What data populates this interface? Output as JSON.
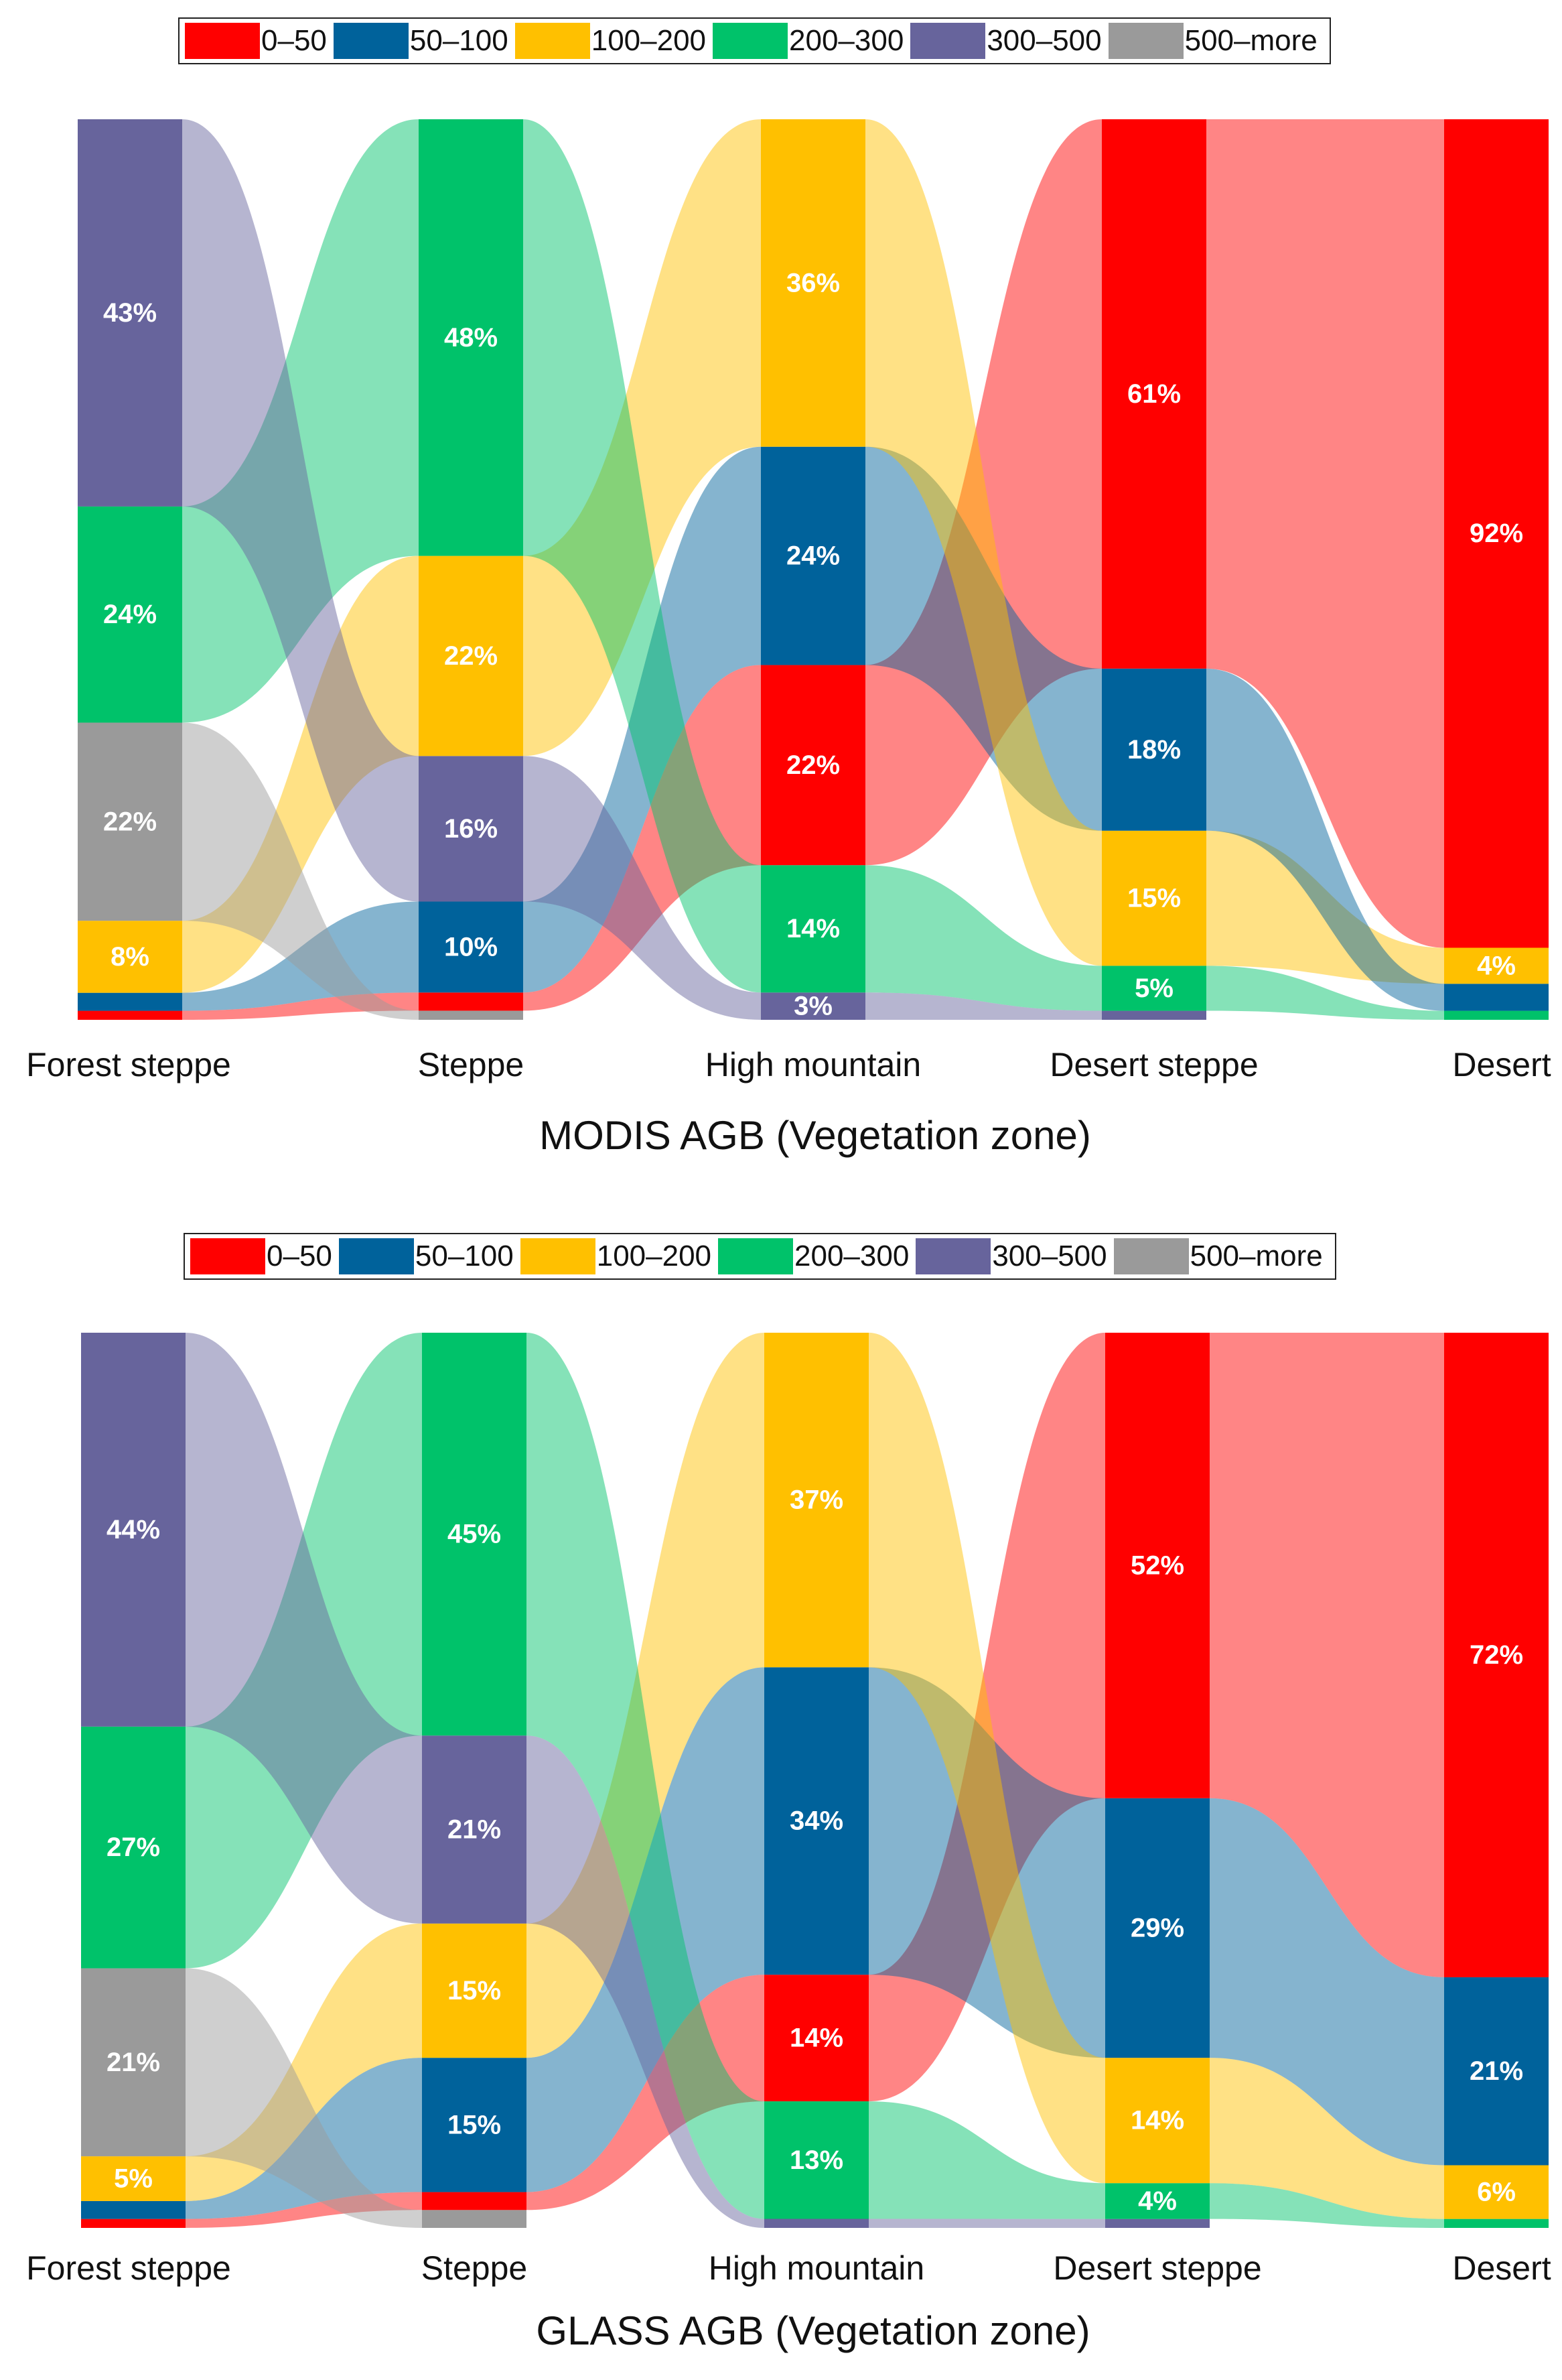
{
  "legend": [
    {
      "label": "0–50",
      "color": "#ff0000"
    },
    {
      "label": "50–100",
      "color": "#00629b"
    },
    {
      "label": "100–200",
      "color": "#ffc000"
    },
    {
      "label": "200–300",
      "color": "#00c26a"
    },
    {
      "label": "300–500",
      "color": "#67649c"
    },
    {
      "label": "500–more",
      "color": "#9a9a9a"
    }
  ],
  "chart_data": [
    {
      "type": "sankey",
      "title": "MODIS AGB (Vegetation zone)",
      "categories": [
        "Forest steppe",
        "Steppe",
        "High mountain",
        "Desert steppe",
        "Desert"
      ],
      "legend_placement": "top",
      "stacks": [
        [
          {
            "bin": "0–50",
            "value": 1
          },
          {
            "bin": "50–100",
            "value": 2
          },
          {
            "bin": "100–200",
            "value": 8
          },
          {
            "bin": "500–more",
            "value": 22
          },
          {
            "bin": "200–300",
            "value": 24
          },
          {
            "bin": "300–500",
            "value": 43
          }
        ],
        [
          {
            "bin": "500–more",
            "value": 1
          },
          {
            "bin": "0–50",
            "value": 2
          },
          {
            "bin": "50–100",
            "value": 10
          },
          {
            "bin": "300–500",
            "value": 16
          },
          {
            "bin": "100–200",
            "value": 22
          },
          {
            "bin": "200–300",
            "value": 48
          }
        ],
        [
          {
            "bin": "300–500",
            "value": 3
          },
          {
            "bin": "200–300",
            "value": 14
          },
          {
            "bin": "0–50",
            "value": 22
          },
          {
            "bin": "50–100",
            "value": 24
          },
          {
            "bin": "100–200",
            "value": 36
          }
        ],
        [
          {
            "bin": "300–500",
            "value": 1
          },
          {
            "bin": "200–300",
            "value": 5
          },
          {
            "bin": "100–200",
            "value": 15
          },
          {
            "bin": "50–100",
            "value": 18
          },
          {
            "bin": "0–50",
            "value": 61
          }
        ],
        [
          {
            "bin": "200–300",
            "value": 1
          },
          {
            "bin": "50–100",
            "value": 3
          },
          {
            "bin": "100–200",
            "value": 4
          },
          {
            "bin": "0–50",
            "value": 92
          }
        ]
      ],
      "labels": [
        [
          null,
          null,
          "8%",
          "22%",
          "24%",
          "43%"
        ],
        [
          null,
          null,
          "10%",
          "16%",
          "22%",
          "48%"
        ],
        [
          "3%",
          "14%",
          "22%",
          "24%",
          "36%"
        ],
        [
          null,
          "5%",
          "15%",
          "18%",
          "61%"
        ],
        [
          null,
          null,
          "4%",
          "92%"
        ]
      ]
    },
    {
      "type": "sankey",
      "title": "GLASS AGB (Vegetation zone)",
      "categories": [
        "Forest steppe",
        "Steppe",
        "High mountain",
        "Desert steppe",
        "Desert"
      ],
      "legend_placement": "top",
      "stacks": [
        [
          {
            "bin": "0–50",
            "value": 1
          },
          {
            "bin": "50–100",
            "value": 2
          },
          {
            "bin": "100–200",
            "value": 5
          },
          {
            "bin": "500–more",
            "value": 21
          },
          {
            "bin": "200–300",
            "value": 27
          },
          {
            "bin": "300–500",
            "value": 44
          }
        ],
        [
          {
            "bin": "500–more",
            "value": 2
          },
          {
            "bin": "0–50",
            "value": 2
          },
          {
            "bin": "50–100",
            "value": 15
          },
          {
            "bin": "100–200",
            "value": 15
          },
          {
            "bin": "300–500",
            "value": 21
          },
          {
            "bin": "200–300",
            "value": 45
          }
        ],
        [
          {
            "bin": "300–500",
            "value": 1
          },
          {
            "bin": "200–300",
            "value": 13
          },
          {
            "bin": "0–50",
            "value": 14
          },
          {
            "bin": "50–100",
            "value": 34
          },
          {
            "bin": "100–200",
            "value": 37
          }
        ],
        [
          {
            "bin": "300–500",
            "value": 1
          },
          {
            "bin": "200–300",
            "value": 4
          },
          {
            "bin": "100–200",
            "value": 14
          },
          {
            "bin": "50–100",
            "value": 29
          },
          {
            "bin": "0–50",
            "value": 52
          }
        ],
        [
          {
            "bin": "200–300",
            "value": 1
          },
          {
            "bin": "100–200",
            "value": 6
          },
          {
            "bin": "50–100",
            "value": 21
          },
          {
            "bin": "0–50",
            "value": 72
          }
        ]
      ],
      "labels": [
        [
          null,
          null,
          "5%",
          "21%",
          "27%",
          "44%"
        ],
        [
          null,
          null,
          "15%",
          "15%",
          "21%",
          "45%"
        ],
        [
          null,
          "13%",
          "14%",
          "34%",
          "37%"
        ],
        [
          null,
          "4%",
          "14%",
          "29%",
          "52%"
        ],
        [
          null,
          "6%",
          "21%",
          "72%"
        ]
      ]
    }
  ]
}
